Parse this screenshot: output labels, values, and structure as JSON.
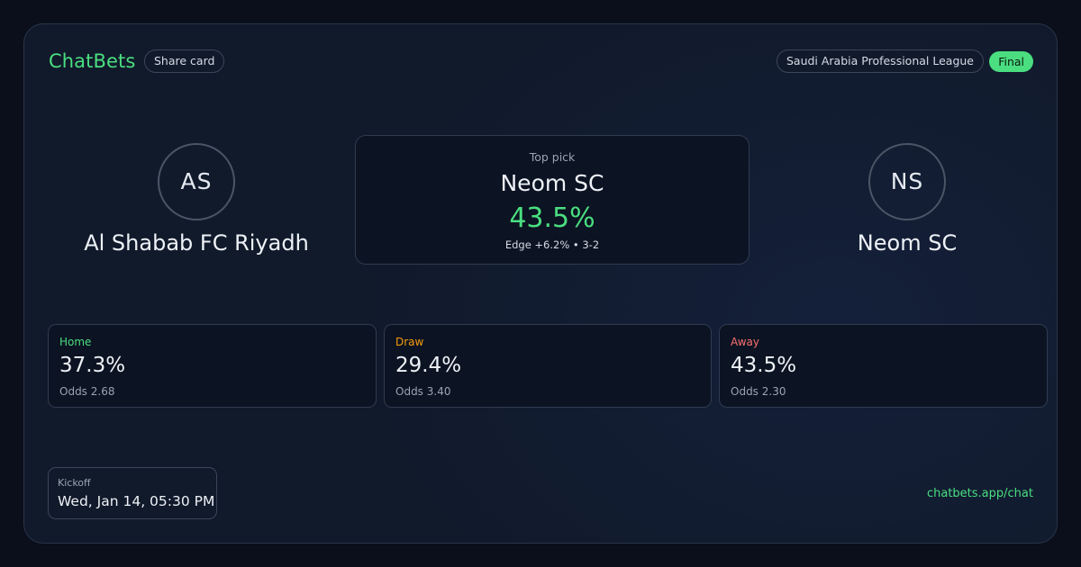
{
  "header": {
    "brand": "ChatBets",
    "share_label": "Share card",
    "league": "Saudi Arabia Professional League",
    "status": "Final"
  },
  "home_team": {
    "initials": "AS",
    "name": "Al Shabab FC Riyadh"
  },
  "away_team": {
    "initials": "NS",
    "name": "Neom SC"
  },
  "top_pick": {
    "label": "Top pick",
    "team": "Neom SC",
    "probability": "43.5%",
    "edge": "Edge +6.2% • 3-2"
  },
  "probabilities": [
    {
      "label": "Home",
      "value": "37.3%",
      "odds": "Odds 2.68",
      "color": "#4ade80"
    },
    {
      "label": "Draw",
      "value": "29.4%",
      "odds": "Odds 3.40",
      "color": "#f59e0b"
    },
    {
      "label": "Away",
      "value": "43.5%",
      "odds": "Odds 2.30",
      "color": "#f87171"
    }
  ],
  "kickoff": {
    "label": "Kickoff",
    "value": "Wed, Jan 14, 05:30 PM"
  },
  "footer": {
    "link": "chatbets.app/chat"
  },
  "colors": {
    "accent": "#4ade80",
    "background": "#111a2b"
  }
}
